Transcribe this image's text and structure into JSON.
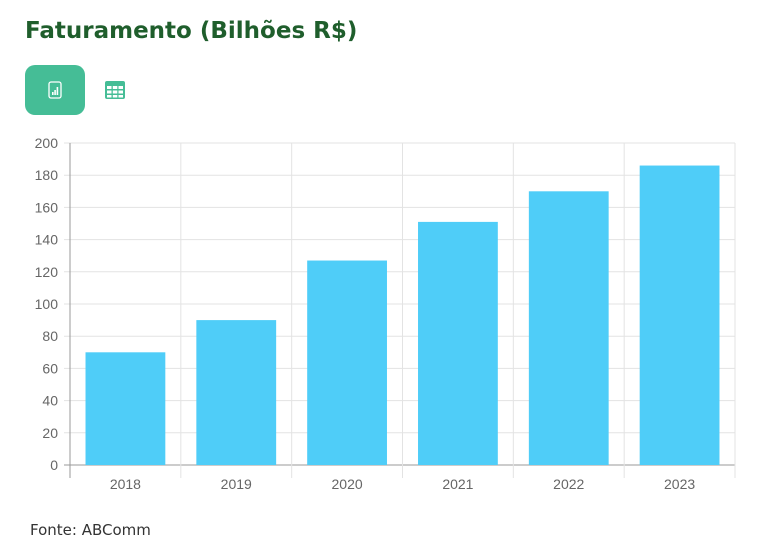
{
  "title": "Faturamento (Bilhões R$)",
  "toolbar": {
    "buttons": [
      {
        "icon": "bar-chart-icon",
        "active": true
      },
      {
        "icon": "table-icon",
        "active": false
      }
    ]
  },
  "colors": {
    "bar": "#4fcdf8",
    "accent": "#45bd96",
    "title": "#1f5e2c"
  },
  "chart_data": {
    "type": "bar",
    "title": "Faturamento (Bilhões R$)",
    "categories": [
      "2018",
      "2019",
      "2020",
      "2021",
      "2022",
      "2023"
    ],
    "values": [
      70,
      90,
      127,
      151,
      170,
      186
    ],
    "ylim": [
      0,
      200
    ],
    "yticks": [
      "0",
      "20",
      "40",
      "60",
      "80",
      "100",
      "120",
      "140",
      "160",
      "180",
      "200"
    ],
    "grid": true,
    "xlabel": "",
    "ylabel": ""
  },
  "source": "Fonte: ABComm"
}
